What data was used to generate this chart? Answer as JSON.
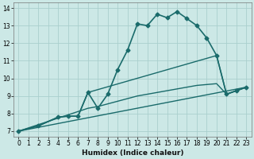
{
  "xlabel": "Humidex (Indice chaleur)",
  "bg_color": "#cce8e6",
  "grid_color": "#aacfcd",
  "line_color": "#1a6b6b",
  "xlim": [
    -0.5,
    23.5
  ],
  "ylim": [
    6.7,
    14.3
  ],
  "xticks": [
    0,
    1,
    2,
    3,
    4,
    5,
    6,
    7,
    8,
    9,
    10,
    11,
    12,
    13,
    14,
    15,
    16,
    17,
    18,
    19,
    20,
    21,
    22,
    23
  ],
  "yticks": [
    7,
    8,
    9,
    10,
    11,
    12,
    13,
    14
  ],
  "series": [
    {
      "x": [
        0,
        2,
        4,
        5,
        6,
        7,
        8,
        9,
        10,
        11,
        12,
        13,
        14,
        15,
        16,
        17,
        18,
        19,
        20,
        21,
        22,
        23
      ],
      "y": [
        7.0,
        7.3,
        7.8,
        7.85,
        7.85,
        9.2,
        8.3,
        9.1,
        10.5,
        11.6,
        13.1,
        13.0,
        13.65,
        13.45,
        13.8,
        13.4,
        13.0,
        12.3,
        11.3,
        9.1,
        9.3,
        9.5
      ],
      "marker": "D",
      "markersize": 2.5,
      "linewidth": 1.2
    },
    {
      "x": [
        0,
        23
      ],
      "y": [
        7.0,
        9.5
      ],
      "marker": null,
      "markersize": 0,
      "linewidth": 1.0
    },
    {
      "x": [
        0,
        2,
        4,
        5,
        6,
        7,
        20,
        21,
        22,
        23
      ],
      "y": [
        7.0,
        7.3,
        7.8,
        7.85,
        7.85,
        9.2,
        11.3,
        9.1,
        9.3,
        9.5
      ],
      "marker": null,
      "markersize": 0,
      "linewidth": 1.0
    },
    {
      "x": [
        0,
        7,
        8,
        10,
        12,
        14,
        16,
        18,
        20,
        21,
        22,
        23
      ],
      "y": [
        7.0,
        8.3,
        8.4,
        8.7,
        9.0,
        9.2,
        9.4,
        9.6,
        9.7,
        9.1,
        9.3,
        9.5
      ],
      "marker": null,
      "markersize": 0,
      "linewidth": 1.0
    }
  ]
}
